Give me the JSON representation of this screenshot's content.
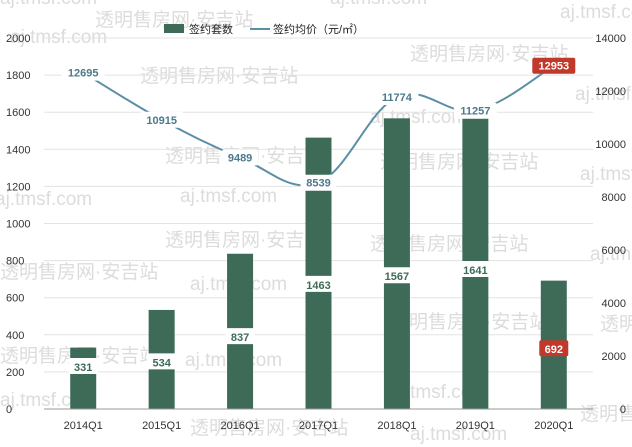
{
  "chart_data": {
    "type": "bar",
    "categories": [
      "2014Q1",
      "2015Q1",
      "2016Q1",
      "2017Q1",
      "2018Q1",
      "2019Q1",
      "2020Q1"
    ],
    "series": [
      {
        "name": "签约套数",
        "type": "bar",
        "axis": "left",
        "values": [
          331,
          534,
          837,
          1463,
          1567,
          1641,
          692
        ],
        "labels": [
          "331",
          "534",
          "837",
          "1463",
          "1567",
          "1641",
          "692"
        ]
      },
      {
        "name": "签约均价（元/㎡）",
        "type": "line",
        "axis": "right",
        "values": [
          12695,
          10915,
          9489,
          8539,
          11774,
          11257,
          12953
        ],
        "labels": [
          "12695",
          "10915",
          "9489",
          "8539",
          "11774",
          "11257",
          "12953"
        ]
      }
    ],
    "y_left": {
      "range": [
        0,
        2000
      ],
      "ticks": [
        "0",
        "200",
        "400",
        "600",
        "800",
        "1000",
        "1200",
        "1400",
        "1600",
        "1800",
        "2000"
      ]
    },
    "y_right": {
      "range": [
        0,
        14000
      ],
      "ticks": [
        "0",
        "2000",
        "4000",
        "6000",
        "8000",
        "10000",
        "12000",
        "14000"
      ]
    },
    "legend_position": "top-center",
    "highlight_category": "2020Q1",
    "grid": true,
    "colors": {
      "bar": "#3d6b58",
      "line": "#5b8fa6",
      "highlight": "#c0392b",
      "grid": "#e3e3e3",
      "label_bg": "#ffffff"
    }
  },
  "watermark": {
    "texts": [
      "aj.tmsf.com",
      "透明售房网·安吉站"
    ]
  }
}
